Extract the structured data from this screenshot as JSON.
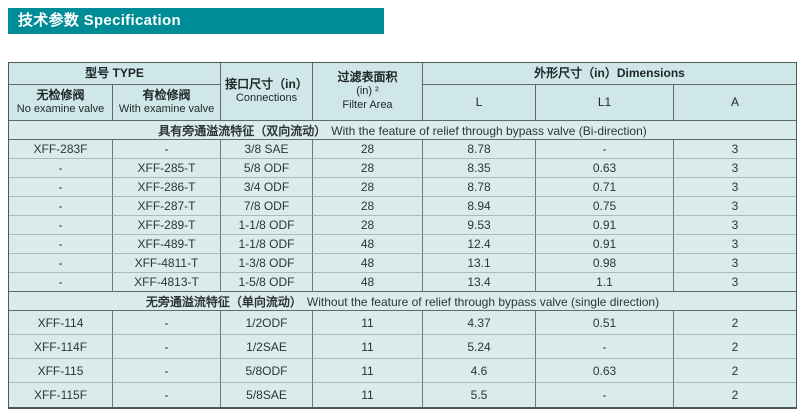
{
  "title_bar": {
    "text": "技术参数 Specification"
  },
  "colors": {
    "accent_teal": "#008c96",
    "header_bg": "#cfe7e8",
    "cell_bg": "#d9eceb",
    "grid_dark": "#5f6b6b",
    "grid_light": "#abbaba",
    "title_text": "#ffffff",
    "body_text": "#2e3434"
  },
  "table": {
    "header": {
      "type": "型号 TYPE",
      "no_examine_cn": "无检修阀",
      "no_examine_en": "No examine valve",
      "with_examine_cn": "有检修阀",
      "with_examine_en": "With examine valve",
      "connections_cn": "接口尺寸（in）",
      "connections_en": "Connections",
      "filter_cn": "过滤表面积",
      "filter_unit": "(in) ²",
      "filter_en": "Filter Area",
      "dimensions": "外形尺寸（in）Dimensions",
      "dim_cols": [
        "L",
        "L1",
        "A"
      ]
    },
    "sections": [
      {
        "band_cn": "具有旁通溢流特征（双向流动）",
        "band_en": "With the feature of relief through bypass valve (Bi-direction)",
        "rows": [
          [
            "XFF-283F",
            "-",
            "3/8 SAE",
            "28",
            "8.78",
            "-",
            "3"
          ],
          [
            "-",
            "XFF-285-T",
            "5/8 ODF",
            "28",
            "8.35",
            "0.63",
            "3"
          ],
          [
            "-",
            "XFF-286-T",
            "3/4 ODF",
            "28",
            "8.78",
            "0.71",
            "3"
          ],
          [
            "-",
            "XFF-287-T",
            "7/8 ODF",
            "28",
            "8.94",
            "0.75",
            "3"
          ],
          [
            "-",
            "XFF-289-T",
            "1-1/8 ODF",
            "28",
            "9.53",
            "0.91",
            "3"
          ],
          [
            "-",
            "XFF-489-T",
            "1-1/8 ODF",
            "48",
            "12.4",
            "0.91",
            "3"
          ],
          [
            "-",
            "XFF-4811-T",
            "1-3/8 ODF",
            "48",
            "13.1",
            "0.98",
            "3"
          ],
          [
            "-",
            "XFF-4813-T",
            "1-5/8 ODF",
            "48",
            "13.4",
            "1.1",
            "3"
          ]
        ]
      },
      {
        "band_cn": "无旁通溢流特征（单向流动）",
        "band_en": "Without the feature of relief through bypass valve (single direction)",
        "rows": [
          [
            "XFF-114",
            "-",
            "1/2ODF",
            "11",
            "4.37",
            "0.51",
            "2"
          ],
          [
            "XFF-114F",
            "-",
            "1/2SAE",
            "11",
            "5.24",
            "-",
            "2"
          ],
          [
            "XFF-115",
            "-",
            "5/8ODF",
            "11",
            "4.6",
            "0.63",
            "2"
          ],
          [
            "XFF-115F",
            "-",
            "5/8SAE",
            "11",
            "5.5",
            "-",
            "2"
          ]
        ]
      }
    ]
  }
}
